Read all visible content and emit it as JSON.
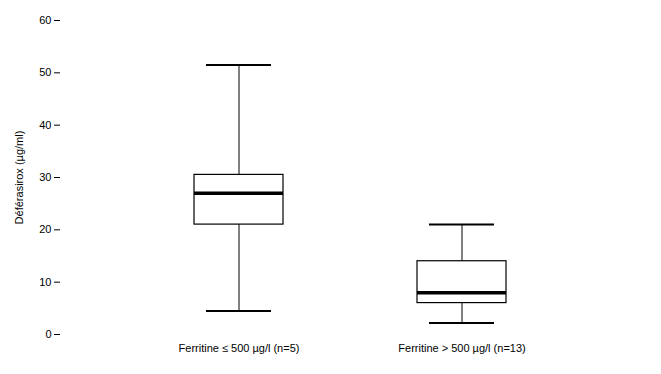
{
  "chart_data": {
    "type": "box",
    "ylabel": "Déférasirox (µg/ml)",
    "categories": [
      "Ferritine ≤ 500 µg/l (n=5)",
      "Ferritine > 500 µg/l (n=13)"
    ],
    "whisker_low": [
      4.5,
      2.2
    ],
    "q1": [
      21.0,
      6.0
    ],
    "median": [
      27.0,
      8.0
    ],
    "q3": [
      30.5,
      14.0
    ],
    "whisker_high": [
      51.5,
      21.0
    ],
    "ylim": [
      0,
      60
    ],
    "yticks": [
      0,
      10,
      20,
      30,
      40,
      50,
      60
    ],
    "grid": false
  }
}
